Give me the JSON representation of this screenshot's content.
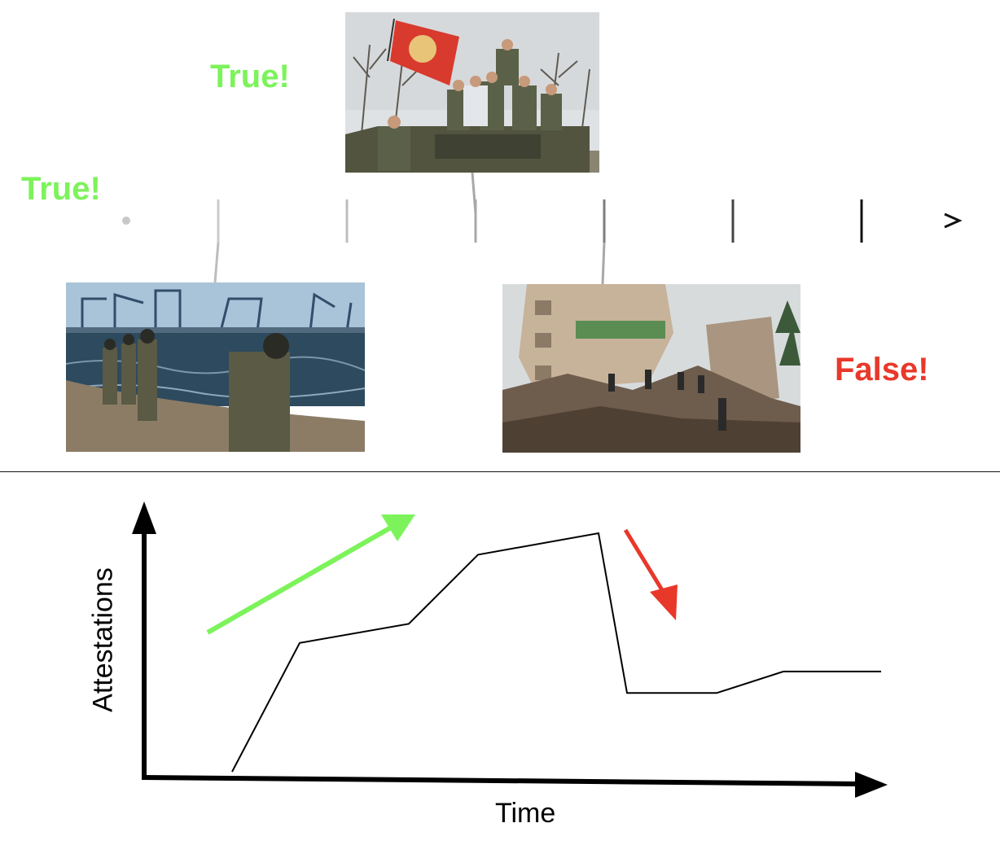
{
  "labels": {
    "true_top": "True!",
    "true_left": "True!",
    "false_right": "False!"
  },
  "colors": {
    "true": "#7cf35a",
    "false": "#e8382a",
    "timeline_start": "#c8c8c8",
    "timeline_end": "#111111"
  },
  "photos": [
    {
      "name": "soldiers-on-tank-photo",
      "subject": "armed fighters on armored vehicle with flag"
    },
    {
      "name": "soldiers-at-port-photo",
      "subject": "soldiers walking on shore near port cranes"
    },
    {
      "name": "destroyed-building-photo",
      "subject": "collapsed apartment building with rescuers"
    }
  ],
  "timeline": {
    "tick_count": 6
  },
  "chart_data": {
    "type": "line",
    "xlabel": "Time",
    "ylabel": "Attestations",
    "series": [
      {
        "x": [
          0,
          1,
          2,
          3,
          4,
          5,
          6,
          7,
          8
        ],
        "values": [
          0,
          5.4,
          6.2,
          9.1,
          10.0,
          3.3,
          3.3,
          4.2,
          4.2
        ]
      }
    ],
    "ylim": [
      0,
      10
    ],
    "trend_arrows": [
      {
        "direction": "up",
        "color": "#7cf35a"
      },
      {
        "direction": "down",
        "color": "#e8382a"
      }
    ]
  }
}
